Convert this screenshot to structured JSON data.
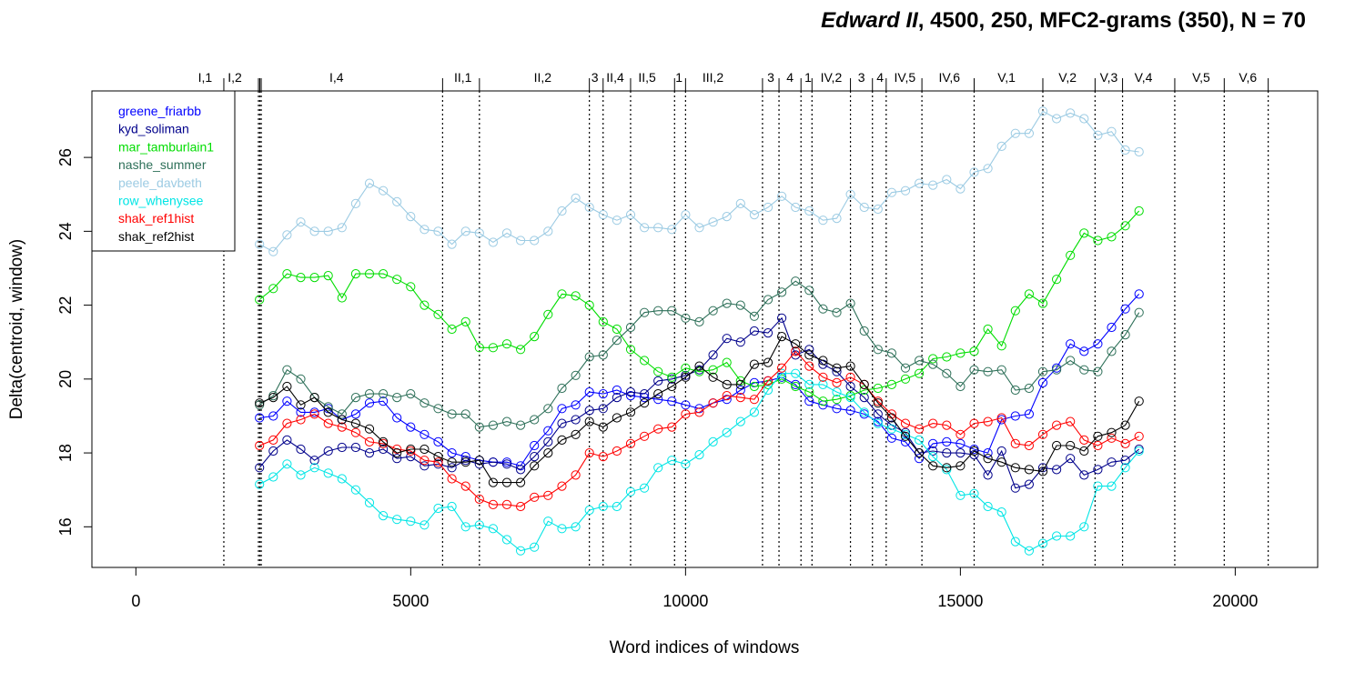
{
  "chart_data": {
    "type": "line",
    "title_italic": "Edward II",
    "title_rest": ", 4500, 250, MFC2-grams (350), N = 70",
    "xlabel": "Word indices of windows",
    "ylabel": "Delta(centroid, window)",
    "xlim": [
      -800,
      21500
    ],
    "ylim": [
      14.9,
      27.8
    ],
    "xticks": [
      0,
      5000,
      10000,
      15000,
      20000
    ],
    "xtick_labels": [
      "0",
      "5000",
      "10000",
      "15000",
      "20000"
    ],
    "yticks": [
      16,
      18,
      20,
      22,
      24,
      26
    ],
    "ytick_labels": [
      "16",
      "18",
      "20",
      "22",
      "24",
      "26"
    ],
    "legend_position": "top-left",
    "grid": false,
    "x": [
      2250,
      2500,
      2750,
      3000,
      3250,
      3500,
      3750,
      4000,
      4250,
      4500,
      4750,
      5000,
      5250,
      5500,
      5750,
      6000,
      6250,
      6500,
      6750,
      7000,
      7250,
      7500,
      7750,
      8000,
      8250,
      8500,
      8750,
      9000,
      9250,
      9500,
      9750,
      10000,
      10250,
      10500,
      10750,
      11000,
      11250,
      11500,
      11750,
      12000,
      12250,
      12500,
      12750,
      13000,
      13250,
      13500,
      13750,
      14000,
      14250,
      14500,
      14750,
      15000,
      15250,
      15500,
      15750,
      16000,
      16250,
      16500,
      16750,
      17000,
      17250,
      17500,
      17750,
      18000,
      18250
    ],
    "series": [
      {
        "name": "greene_friarbb",
        "color": "#0000ff",
        "values": [
          18.95,
          19.0,
          19.4,
          19.1,
          19.1,
          19.2,
          18.9,
          19.05,
          19.35,
          19.4,
          18.95,
          18.7,
          18.5,
          18.3,
          18.0,
          17.9,
          17.8,
          17.75,
          17.75,
          17.65,
          18.2,
          18.6,
          19.2,
          19.3,
          19.65,
          19.6,
          19.7,
          19.55,
          19.5,
          19.45,
          19.4,
          19.3,
          19.2,
          19.35,
          19.45,
          19.7,
          19.9,
          19.95,
          20.05,
          19.85,
          19.4,
          19.3,
          19.2,
          19.15,
          19.05,
          18.85,
          18.4,
          18.3,
          17.85,
          18.25,
          18.3,
          18.25,
          18.1,
          18.0,
          18.9,
          19.0,
          19.05,
          19.9,
          20.3,
          20.95,
          20.75,
          20.95,
          21.4,
          21.9,
          22.3
        ]
      },
      {
        "name": "kyd_soliman",
        "color": "#00008b",
        "values": [
          17.6,
          18.05,
          18.35,
          18.1,
          17.8,
          18.05,
          18.15,
          18.15,
          18.0,
          18.1,
          17.85,
          17.9,
          17.65,
          17.7,
          17.6,
          17.8,
          17.7,
          17.75,
          17.7,
          17.55,
          17.9,
          18.3,
          18.8,
          18.9,
          19.15,
          19.2,
          19.5,
          19.65,
          19.6,
          19.95,
          20.0,
          20.1,
          20.25,
          20.65,
          21.1,
          21.0,
          21.3,
          21.25,
          21.65,
          20.65,
          20.8,
          20.4,
          20.2,
          19.8,
          19.5,
          19.05,
          18.75,
          18.55,
          18.0,
          18.05,
          18.0,
          18.0,
          17.95,
          17.4,
          18.05,
          17.05,
          17.15,
          17.6,
          17.55,
          17.85,
          17.4,
          17.55,
          17.75,
          17.8,
          18.1
        ]
      },
      {
        "name": "mar_tamburlain1",
        "color": "#00dd00",
        "values": [
          22.15,
          22.45,
          22.85,
          22.75,
          22.75,
          22.8,
          22.2,
          22.85,
          22.85,
          22.85,
          22.7,
          22.5,
          22.0,
          21.75,
          21.35,
          21.55,
          20.85,
          20.85,
          20.95,
          20.8,
          21.15,
          21.75,
          22.3,
          22.25,
          22.0,
          21.55,
          21.35,
          20.8,
          20.5,
          20.2,
          20.05,
          20.3,
          20.2,
          20.25,
          20.45,
          19.95,
          19.8,
          19.85,
          20.0,
          19.8,
          19.65,
          19.4,
          19.45,
          19.55,
          19.7,
          19.75,
          19.85,
          20.0,
          20.15,
          20.55,
          20.6,
          20.7,
          20.75,
          21.35,
          20.9,
          21.85,
          22.3,
          22.05,
          22.7,
          23.35,
          23.95,
          23.75,
          23.85,
          24.15,
          24.55
        ]
      },
      {
        "name": "nashe_summer",
        "color": "#2e7059",
        "values": [
          19.3,
          19.55,
          20.25,
          20.0,
          19.5,
          19.25,
          19.05,
          19.5,
          19.6,
          19.6,
          19.5,
          19.6,
          19.35,
          19.2,
          19.05,
          19.05,
          18.7,
          18.75,
          18.85,
          18.75,
          18.9,
          19.2,
          19.75,
          20.1,
          20.6,
          20.65,
          21.05,
          21.4,
          21.8,
          21.85,
          21.85,
          21.65,
          21.55,
          21.85,
          22.05,
          22.0,
          21.7,
          22.15,
          22.35,
          22.65,
          22.4,
          21.9,
          21.8,
          22.05,
          21.3,
          20.8,
          20.7,
          20.3,
          20.5,
          20.4,
          20.15,
          19.8,
          20.25,
          20.2,
          20.25,
          19.7,
          19.75,
          20.2,
          20.25,
          20.5,
          20.25,
          20.2,
          20.75,
          21.2,
          21.8
        ]
      },
      {
        "name": "peele_davbeth",
        "color": "#9ccbe3",
        "values": [
          23.65,
          23.45,
          23.9,
          24.25,
          24.0,
          24.0,
          24.1,
          24.75,
          25.3,
          25.1,
          24.8,
          24.4,
          24.05,
          24.0,
          23.65,
          24.0,
          23.95,
          23.7,
          23.95,
          23.75,
          23.75,
          24.0,
          24.55,
          24.9,
          24.65,
          24.45,
          24.3,
          24.45,
          24.1,
          24.1,
          24.05,
          24.45,
          24.1,
          24.25,
          24.4,
          24.75,
          24.45,
          24.65,
          24.95,
          24.65,
          24.55,
          24.3,
          24.35,
          25.0,
          24.65,
          24.6,
          25.05,
          25.1,
          25.3,
          25.25,
          25.4,
          25.15,
          25.6,
          25.7,
          26.3,
          26.65,
          26.65,
          27.25,
          27.05,
          27.2,
          27.05,
          26.6,
          26.7,
          26.2,
          26.15
        ]
      },
      {
        "name": "row_whenysee",
        "color": "#00e5e5",
        "values": [
          17.15,
          17.35,
          17.7,
          17.4,
          17.6,
          17.45,
          17.3,
          17.0,
          16.65,
          16.3,
          16.2,
          16.15,
          16.05,
          16.5,
          16.55,
          16.0,
          16.05,
          15.95,
          15.65,
          15.35,
          15.45,
          16.15,
          15.95,
          16.0,
          16.45,
          16.55,
          16.55,
          16.95,
          17.05,
          17.6,
          17.8,
          17.7,
          17.95,
          18.3,
          18.55,
          18.85,
          19.1,
          19.7,
          20.15,
          20.15,
          19.85,
          19.85,
          19.65,
          19.5,
          19.1,
          18.8,
          18.65,
          18.5,
          18.35,
          17.9,
          17.55,
          16.85,
          16.9,
          16.55,
          16.4,
          15.6,
          15.35,
          15.55,
          15.75,
          15.75,
          16.0,
          17.1,
          17.1,
          17.6,
          18.05
        ]
      },
      {
        "name": "shak_ref1hist",
        "color": "#ff0000",
        "values": [
          18.2,
          18.35,
          18.8,
          18.9,
          19.05,
          18.8,
          18.7,
          18.55,
          18.3,
          18.25,
          18.1,
          18.05,
          17.8,
          17.75,
          17.3,
          17.1,
          16.75,
          16.6,
          16.6,
          16.55,
          16.8,
          16.85,
          17.1,
          17.4,
          18.0,
          17.9,
          18.05,
          18.25,
          18.45,
          18.65,
          18.7,
          19.05,
          19.1,
          19.35,
          19.55,
          19.5,
          19.45,
          19.95,
          20.3,
          20.75,
          20.35,
          20.05,
          19.9,
          20.05,
          19.85,
          19.4,
          19.05,
          18.8,
          18.65,
          18.8,
          18.75,
          18.5,
          18.8,
          18.85,
          18.95,
          18.25,
          18.2,
          18.5,
          18.75,
          18.85,
          18.35,
          18.2,
          18.4,
          18.25,
          18.45
        ]
      },
      {
        "name": "shak_ref2hist",
        "color": "#000000",
        "values": [
          19.35,
          19.5,
          19.8,
          19.3,
          19.5,
          19.1,
          18.9,
          18.8,
          18.65,
          18.3,
          18.0,
          18.1,
          18.1,
          17.9,
          17.75,
          17.75,
          17.8,
          17.2,
          17.2,
          17.2,
          17.65,
          18.0,
          18.35,
          18.5,
          18.85,
          18.7,
          18.95,
          19.1,
          19.35,
          19.6,
          19.8,
          20.05,
          20.35,
          20.05,
          19.85,
          19.85,
          20.4,
          20.45,
          21.15,
          20.95,
          20.65,
          20.5,
          20.3,
          20.35,
          19.85,
          19.35,
          18.95,
          18.45,
          18.0,
          17.65,
          17.6,
          17.65,
          18.05,
          17.85,
          17.75,
          17.6,
          17.55,
          17.5,
          18.2,
          18.2,
          18.05,
          18.45,
          18.55,
          18.75,
          19.4
        ]
      }
    ],
    "scene_boundaries": [
      1600,
      2230,
      2255,
      2280,
      5580,
      6250,
      8250,
      8500,
      9000,
      9800,
      10000,
      11400,
      11700,
      12100,
      12300,
      13000,
      13400,
      13650,
      14300,
      15250,
      16500,
      17450,
      17950,
      18900,
      19800,
      20600
    ],
    "scene_labels": [
      {
        "text": "I,1",
        "x": 1260
      },
      {
        "text": "I,2",
        "x": 1800
      },
      {
        "text": "I,4",
        "x": 3650
      },
      {
        "text": "II,1",
        "x": 5950
      },
      {
        "text": "II,2",
        "x": 7400
      },
      {
        "text": "3",
        "x": 8350
      },
      {
        "text": "II,4",
        "x": 8720
      },
      {
        "text": "II,5",
        "x": 9300
      },
      {
        "text": "1",
        "x": 9880
      },
      {
        "text": "III,2",
        "x": 10500
      },
      {
        "text": "3",
        "x": 11550
      },
      {
        "text": "4",
        "x": 11900
      },
      {
        "text": "1",
        "x": 12230
      },
      {
        "text": "IV,2",
        "x": 12650
      },
      {
        "text": "3",
        "x": 13200
      },
      {
        "text": "4",
        "x": 13540
      },
      {
        "text": "IV,5",
        "x": 13990
      },
      {
        "text": "IV,6",
        "x": 14800
      },
      {
        "text": "V,1",
        "x": 15840
      },
      {
        "text": "V,2",
        "x": 16950
      },
      {
        "text": "V,3",
        "x": 17700
      },
      {
        "text": "V,4",
        "x": 18330
      },
      {
        "text": "V,5",
        "x": 19380
      },
      {
        "text": "V,6",
        "x": 20230
      }
    ]
  }
}
